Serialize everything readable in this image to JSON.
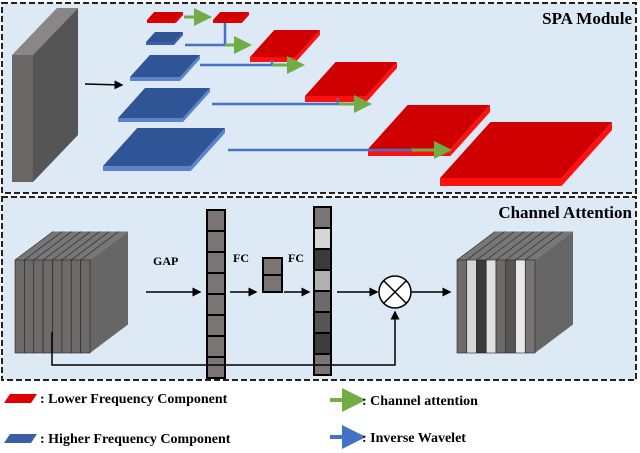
{
  "spa_module": {
    "title": "SPA Module"
  },
  "channel_attention": {
    "title": "Channel Attention",
    "gap_label": "GAP",
    "fc1_label": "FC",
    "fc2_label": "FC",
    "attention_weights_shades": [
      "#7a7474",
      "#d6d6d6",
      "#3a3a3a",
      "#b0b0b0",
      "#6e6a6a",
      "#555555",
      "#3d3d3d",
      "#7a7474"
    ]
  },
  "legend": {
    "lower": ": Lower Frequency Component",
    "higher": ": Higher Frequency Component",
    "channel_attention": ": Channel attention",
    "inverse_wavelet": ": Inverse Wavelet"
  },
  "colors": {
    "low_freq": "#e00000",
    "high_freq": "#3a5fa8",
    "channel_attention_arrow": "#70ad47",
    "inverse_wavelet_arrow": "#4472c4",
    "panel_bg": "#dde9f5"
  }
}
